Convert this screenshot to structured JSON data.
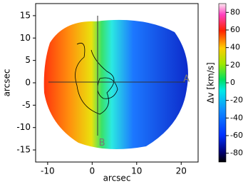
{
  "chart_data": {
    "type": "image",
    "xlabel": "arcsec",
    "ylabel": "arcsec",
    "xlim": [
      -12.7,
      23.8
    ],
    "ylim": [
      -17.7,
      17.7
    ],
    "xticks": [
      -10,
      0,
      10,
      20
    ],
    "yticks": [
      -15,
      -10,
      -5,
      0,
      5,
      10,
      15
    ],
    "colorbar": {
      "label": "Δv [km/s]",
      "lim": [
        -90,
        90
      ],
      "ticks": [
        -80,
        -60,
        -40,
        -20,
        0,
        20,
        40,
        60,
        80
      ]
    },
    "annotations": [
      {
        "text": "A",
        "x": 21.2,
        "y": 0.8
      },
      {
        "text": "B",
        "x": 2.2,
        "y": -13.5
      }
    ]
  }
}
